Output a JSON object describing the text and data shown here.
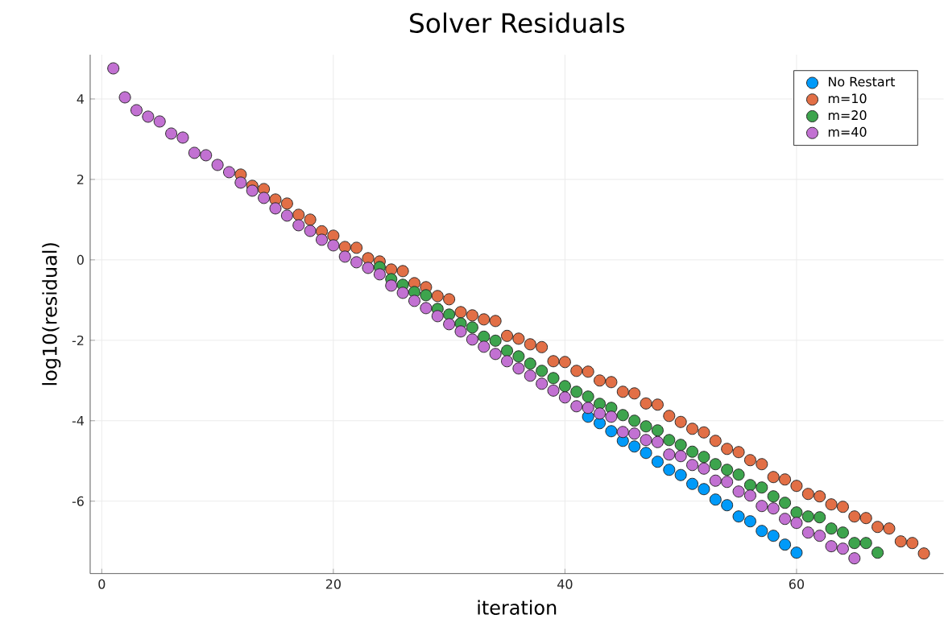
{
  "chart_data": {
    "type": "scatter",
    "title": "Solver Residuals",
    "xlabel": "iteration",
    "ylabel": "log10(residual)",
    "xlim": [
      -1,
      72.7
    ],
    "ylim": [
      -7.8,
      5.1
    ],
    "xticks": [
      0,
      20,
      40,
      60
    ],
    "yticks": [
      -6,
      -4,
      -2,
      0,
      2,
      4
    ],
    "grid": true,
    "legend": "top right",
    "marker": "circle",
    "series": [
      {
        "name": "No Restart",
        "color": "#009af9",
        "x": [
          42,
          43,
          44,
          45,
          46,
          47,
          48,
          49,
          50,
          51,
          52,
          53,
          54,
          55,
          56,
          57,
          58,
          59,
          60
        ],
        "values": [
          -3.9,
          -4.06,
          -4.26,
          -4.5,
          -4.64,
          -4.8,
          -5.02,
          -5.22,
          -5.35,
          -5.57,
          -5.7,
          -5.96,
          -6.1,
          -6.38,
          -6.5,
          -6.74,
          -6.86,
          -7.08,
          -7.28
        ]
      },
      {
        "name": "m=10",
        "color": "#e26f46",
        "x": [
          12,
          13,
          14,
          15,
          16,
          17,
          18,
          19,
          20,
          21,
          22,
          23,
          24,
          25,
          26,
          27,
          28,
          29,
          30,
          31,
          32,
          33,
          34,
          35,
          36,
          37,
          38,
          39,
          40,
          41,
          42,
          43,
          44,
          45,
          46,
          47,
          48,
          49,
          50,
          51,
          52,
          53,
          54,
          55,
          56,
          57,
          58,
          59,
          60,
          61,
          62,
          63,
          64,
          65,
          66,
          67,
          68,
          69,
          70,
          71
        ],
        "values": [
          2.12,
          1.84,
          1.76,
          1.5,
          1.4,
          1.12,
          1.0,
          0.71,
          0.6,
          0.32,
          0.3,
          0.04,
          -0.04,
          -0.24,
          -0.28,
          -0.58,
          -0.68,
          -0.9,
          -0.98,
          -1.3,
          -1.38,
          -1.48,
          -1.52,
          -1.89,
          -1.96,
          -2.1,
          -2.17,
          -2.52,
          -2.54,
          -2.76,
          -2.78,
          -3.0,
          -3.04,
          -3.28,
          -3.32,
          -3.57,
          -3.6,
          -3.88,
          -4.03,
          -4.2,
          -4.29,
          -4.5,
          -4.7,
          -4.78,
          -4.98,
          -5.08,
          -5.4,
          -5.46,
          -5.62,
          -5.82,
          -5.88,
          -6.08,
          -6.14,
          -6.38,
          -6.42,
          -6.64,
          -6.68,
          -7.0,
          -7.04,
          -7.3
        ]
      },
      {
        "name": "m=20",
        "color": "#3da44d",
        "x": [
          24,
          25,
          26,
          27,
          28,
          29,
          30,
          31,
          32,
          33,
          34,
          35,
          36,
          37,
          38,
          39,
          40,
          41,
          42,
          43,
          44,
          45,
          46,
          47,
          48,
          49,
          50,
          51,
          52,
          53,
          54,
          55,
          56,
          57,
          58,
          59,
          60,
          61,
          62,
          63,
          64,
          65,
          66,
          67
        ],
        "values": [
          -0.18,
          -0.48,
          -0.62,
          -0.8,
          -0.88,
          -1.22,
          -1.36,
          -1.58,
          -1.68,
          -1.91,
          -2.01,
          -2.26,
          -2.4,
          -2.58,
          -2.76,
          -2.94,
          -3.14,
          -3.28,
          -3.4,
          -3.58,
          -3.68,
          -3.86,
          -4.0,
          -4.14,
          -4.24,
          -4.48,
          -4.6,
          -4.77,
          -4.9,
          -5.08,
          -5.22,
          -5.34,
          -5.6,
          -5.66,
          -5.88,
          -6.04,
          -6.28,
          -6.38,
          -6.4,
          -6.68,
          -6.78,
          -7.04,
          -7.04,
          -7.28
        ]
      },
      {
        "name": "m=40",
        "color": "#c271d2",
        "x": [
          1,
          2,
          3,
          4,
          5,
          6,
          7,
          8,
          9,
          10,
          11,
          12,
          13,
          14,
          15,
          16,
          17,
          18,
          19,
          20,
          21,
          22,
          23,
          24,
          25,
          26,
          27,
          28,
          29,
          30,
          31,
          32,
          33,
          34,
          35,
          36,
          37,
          38,
          39,
          40,
          41,
          42,
          43,
          44,
          45,
          46,
          47,
          48,
          49,
          50,
          51,
          52,
          53,
          54,
          55,
          56,
          57,
          58,
          59,
          60,
          61,
          62,
          63,
          64,
          65
        ],
        "values": [
          4.76,
          4.04,
          3.72,
          3.56,
          3.44,
          3.14,
          3.04,
          2.66,
          2.6,
          2.36,
          2.18,
          1.92,
          1.72,
          1.54,
          1.28,
          1.1,
          0.86,
          0.72,
          0.5,
          0.36,
          0.08,
          -0.06,
          -0.2,
          -0.36,
          -0.64,
          -0.82,
          -1.02,
          -1.2,
          -1.4,
          -1.6,
          -1.78,
          -1.98,
          -2.16,
          -2.34,
          -2.52,
          -2.7,
          -2.88,
          -3.08,
          -3.25,
          -3.42,
          -3.64,
          -3.68,
          -3.82,
          -3.9,
          -4.28,
          -4.32,
          -4.48,
          -4.53,
          -4.84,
          -4.88,
          -5.1,
          -5.19,
          -5.49,
          -5.52,
          -5.76,
          -5.86,
          -6.12,
          -6.18,
          -6.44,
          -6.54,
          -6.78,
          -6.86,
          -7.12,
          -7.18,
          -7.42
        ]
      }
    ]
  }
}
